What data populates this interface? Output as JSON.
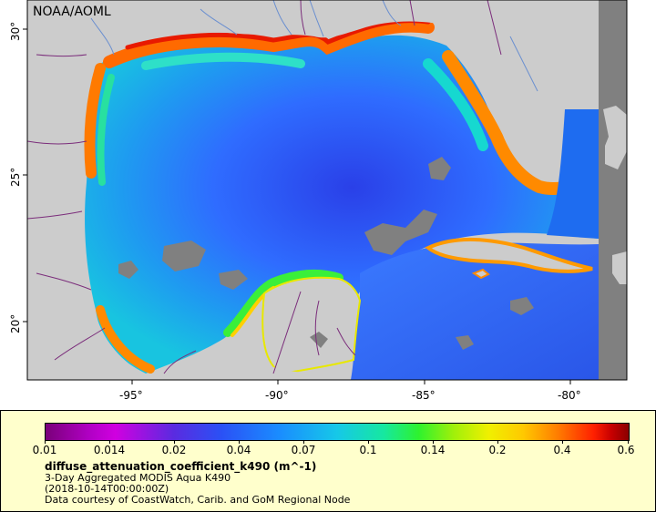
{
  "map": {
    "credit": "NOAA/AOML",
    "x_axis_labels": [
      "-95°",
      "-90°",
      "-85°",
      "-80°"
    ],
    "y_axis_labels": [
      "30°",
      "25°",
      "20°"
    ],
    "colors": {
      "land": "#cccccc",
      "missing_data": "#808080",
      "boundary_lines": "#7b2d7b",
      "rivers": "#6a8fd0",
      "deep_water": "#2f6cff"
    }
  },
  "legend": {
    "colorbar_ticks": [
      "0.01",
      "0.014",
      "0.02",
      "0.04",
      "0.07",
      "0.1",
      "0.14",
      "0.2",
      "0.4",
      "0.6"
    ],
    "variable": "diffuse_attenuation_coefficient_k490 (m^-1)",
    "line1": "3-Day Aggregated MODIS Aqua K490",
    "line2": "(2018-10-14T00:00:00Z)",
    "line3": "Data courtesy of CoastWatch, Carib. and GoM Regional Node"
  }
}
